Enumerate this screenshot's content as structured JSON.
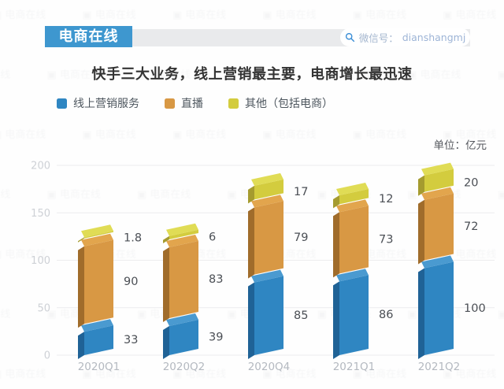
{
  "header": {
    "brand": "电商在线",
    "brand_bg": "#3e97cf",
    "wechat_prefix": "微信号：",
    "wechat_id": "dianshangmj"
  },
  "title": "快手三大业务，线上营销最主要，电商增长最迅速",
  "unit_label": "单位：亿元",
  "watermark_text": "电商在线",
  "colors": {
    "title_text": "#333333",
    "value_label": "#4b4f55",
    "axis_tick": "#ced1d6",
    "category_label": "#b4b9c0",
    "gridline": "#ececee",
    "search_icon": "#3d8fd6"
  },
  "chart_data": {
    "type": "bar",
    "stacked": true,
    "style": "3d",
    "title": "快手三大业务，线上营销最主要，电商增长最迅速",
    "unit": "亿元",
    "categories": [
      "2020Q1",
      "2020Q2",
      "2020Q4",
      "2021Q1",
      "2021Q2"
    ],
    "series": [
      {
        "name": "线上营销服务",
        "color": "#2f86c2",
        "side_color": "#1f6296",
        "top_color": "#4a9ad0",
        "values": [
          33,
          39,
          85,
          86,
          100
        ]
      },
      {
        "name": "直播",
        "color": "#d89844",
        "side_color": "#a06c2b",
        "top_color": "#e2a54d",
        "values": [
          90,
          83,
          79,
          73,
          72
        ]
      },
      {
        "name": "其他（包括电商）",
        "color": "#d3cc3e",
        "side_color": "#a59b2f",
        "top_color": "#e0dc55",
        "values": [
          1.8,
          6,
          17,
          12,
          20
        ]
      }
    ],
    "ylim": [
      0,
      200
    ],
    "yticks": [
      0,
      50,
      100,
      150,
      200
    ],
    "grid": true,
    "legend_position": "top"
  }
}
